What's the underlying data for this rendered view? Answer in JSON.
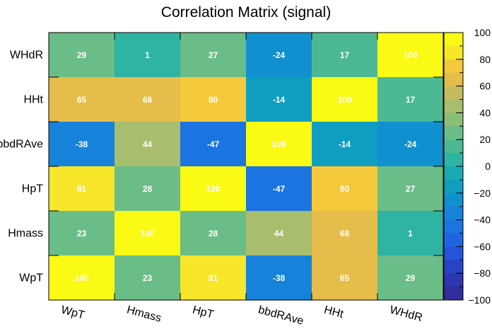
{
  "chart_data": {
    "type": "heatmap",
    "title": "Correlation Matrix (signal)",
    "x_categories": [
      "WpT",
      "Hmass",
      "HpT",
      "bbdRAve",
      "HHt",
      "WHdR"
    ],
    "y_categories": [
      "WHdR",
      "HHt",
      "bbdRAve",
      "HpT",
      "Hmass",
      "WpT"
    ],
    "values": [
      [
        29,
        1,
        27,
        -24,
        17,
        100
      ],
      [
        65,
        68,
        80,
        -14,
        100,
        17
      ],
      [
        -38,
        44,
        -47,
        100,
        -14,
        -24
      ],
      [
        81,
        28,
        100,
        -47,
        80,
        27
      ],
      [
        23,
        100,
        28,
        44,
        68,
        1
      ],
      [
        100,
        23,
        81,
        -38,
        65,
        29
      ]
    ],
    "zlim": [
      -100,
      100
    ],
    "colorbar_ticks": [
      "100",
      "80",
      "60",
      "40",
      "20",
      "0",
      "−20",
      "−40",
      "−60",
      "−80",
      "−100"
    ],
    "colorbar_levels": [
      "#fafa14",
      "#f7e62a",
      "#f5c93c",
      "#e6bd4a",
      "#c7bb60",
      "#a8bd6e",
      "#8cbe7a",
      "#6bbd87",
      "#4cb994",
      "#2fb3a3",
      "#1aaab2",
      "#0f9ebf",
      "#1190d0",
      "#1782da",
      "#1b74e0",
      "#1f65e2",
      "#2454d8",
      "#2a43c4",
      "#2e36b0",
      "#332c9c"
    ]
  }
}
